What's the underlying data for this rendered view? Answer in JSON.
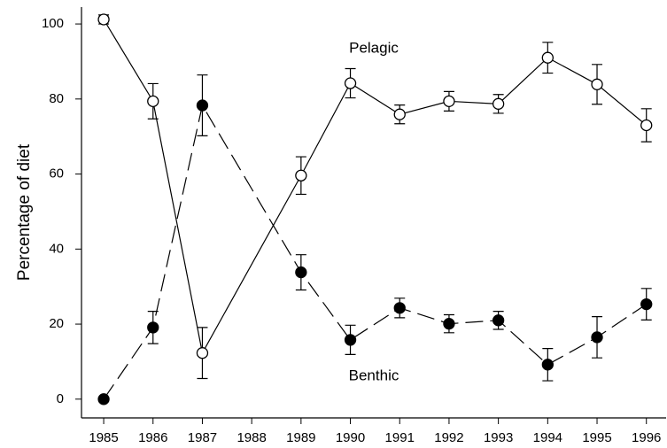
{
  "chart_data": {
    "type": "line",
    "y_label": "Percentage of diet",
    "x": [
      1985,
      1986,
      1987,
      1989,
      1990,
      1991,
      1992,
      1993,
      1994,
      1995,
      1996
    ],
    "series": [
      {
        "name": "Pelagic",
        "color": "#ffffff",
        "linestyle": "solid",
        "values": [
          101.2,
          79.4,
          12.3,
          59.6,
          84.2,
          75.9,
          79.4,
          78.7,
          91.0,
          83.9,
          73.0
        ],
        "errors": [
          1.2,
          4.7,
          6.8,
          5.0,
          3.9,
          2.5,
          2.6,
          2.5,
          4.1,
          5.3,
          4.4
        ]
      },
      {
        "name": "Benthic",
        "color": "#000000",
        "linestyle": "dashed",
        "values": [
          0,
          19.1,
          78.3,
          33.8,
          15.8,
          24.3,
          20.1,
          21.0,
          9.2,
          16.5,
          25.3
        ],
        "errors": [
          0,
          4.3,
          8.1,
          4.7,
          3.9,
          2.6,
          2.4,
          2.4,
          4.3,
          5.5,
          4.2
        ]
      }
    ],
    "annotations": [
      "Pelagic",
      "Benthic"
    ],
    "xlim": [
      1984.55,
      1996.4
    ],
    "xticks": [
      1985,
      1986,
      1987,
      1988,
      1989,
      1990,
      1991,
      1992,
      1993,
      1994,
      1995,
      1996
    ],
    "ylim": [
      -5,
      104.5
    ],
    "yticks": [
      0,
      20,
      40,
      60,
      80,
      100
    ],
    "grid": false
  }
}
